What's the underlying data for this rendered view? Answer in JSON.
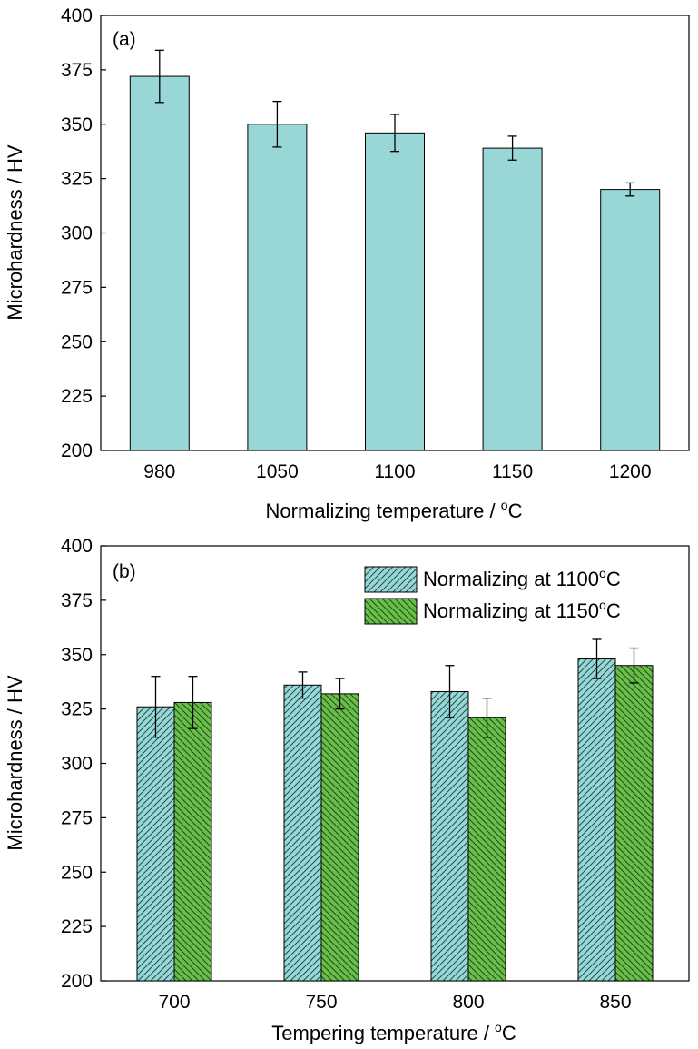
{
  "chart_data": [
    {
      "type": "bar",
      "panel_label": "(a)",
      "xlabel": "Normalizing temperature / ",
      "xlabel_unit": "C",
      "ylabel": "Microhardness / HV",
      "ylim": [
        200,
        400
      ],
      "yticks": [
        200,
        225,
        250,
        275,
        300,
        325,
        350,
        375,
        400
      ],
      "categories": [
        "980",
        "1050",
        "1100",
        "1150",
        "1200"
      ],
      "series": [
        {
          "values": [
            372,
            350,
            346,
            339,
            320
          ],
          "errors": [
            12,
            10.5,
            8.5,
            5.5,
            3
          ],
          "color": "#99d7d7",
          "pattern": "solid"
        }
      ]
    },
    {
      "type": "bar",
      "panel_label": "(b)",
      "xlabel": "Tempering temperature / ",
      "xlabel_unit": "C",
      "ylabel": "Microhardness / HV",
      "ylim": [
        200,
        400
      ],
      "yticks": [
        200,
        225,
        250,
        275,
        300,
        325,
        350,
        375,
        400
      ],
      "categories": [
        "700",
        "750",
        "800",
        "850"
      ],
      "legend_position": "top-right",
      "series": [
        {
          "name": "Normalizing at 1100",
          "name_unit": "C",
          "values": [
            326,
            336,
            333,
            348
          ],
          "errors": [
            14,
            6,
            12,
            9
          ],
          "color": "#99d7d7",
          "pattern": "hatch-forward"
        },
        {
          "name": "Normalizing at 1150",
          "name_unit": "C",
          "values": [
            328,
            332,
            321,
            345
          ],
          "errors": [
            12,
            7,
            9,
            8
          ],
          "color": "#6abf4b",
          "pattern": "hatch-backward"
        }
      ]
    }
  ]
}
